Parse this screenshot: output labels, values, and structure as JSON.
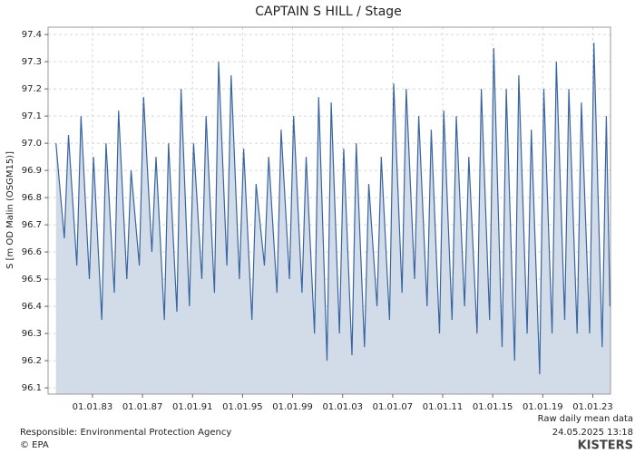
{
  "chart_data": {
    "type": "area",
    "title": "CAPTAIN S HILL / Stage",
    "y_label": "S [m OD Malin (OSGM15)]",
    "note": "Raw daily mean data",
    "responsible": "Responsible: Environmental Protection Agency",
    "timestamp": "24.05.2025 13:18",
    "copyright": "© EPA",
    "brand": "KISTERS",
    "line_color": "#3a64a0",
    "fill_color": "#d2dce9",
    "grid": true,
    "xlim": [
      "1979-06-15",
      "2024-06-01"
    ],
    "ylim": [
      96.077,
      97.427
    ],
    "xticks": [
      {
        "value": "1983-01-01",
        "label": "01.01.83"
      },
      {
        "value": "1987-01-01",
        "label": "01.01.87"
      },
      {
        "value": "1991-01-01",
        "label": "01.01.91"
      },
      {
        "value": "1995-01-01",
        "label": "01.01.95"
      },
      {
        "value": "1999-01-01",
        "label": "01.01.99"
      },
      {
        "value": "2003-01-01",
        "label": "01.01.03"
      },
      {
        "value": "2007-01-01",
        "label": "01.01.07"
      },
      {
        "value": "2011-01-01",
        "label": "01.01.11"
      },
      {
        "value": "2015-01-01",
        "label": "01.01.15"
      },
      {
        "value": "2019-01-01",
        "label": "01.01.19"
      },
      {
        "value": "2023-01-01",
        "label": "01.01.23"
      }
    ],
    "yticks": [
      96.1,
      96.2,
      96.3,
      96.4,
      96.5,
      96.6,
      96.7,
      96.8,
      96.9,
      {
        "value": 97,
        "label": "97.0"
      },
      97.1,
      97.2,
      97.3,
      97.4
    ],
    "x": [
      "1980-02-01",
      "1980-10-01",
      "1981-02-01",
      "1981-10-01",
      "1982-02-01",
      "1982-10-01",
      "1983-02-01",
      "1983-10-01",
      "1984-02-01",
      "1984-10-01",
      "1985-02-01",
      "1985-10-01",
      "1986-02-01",
      "1986-10-01",
      "1987-02-01",
      "1987-10-01",
      "1988-02-01",
      "1988-10-01",
      "1989-02-01",
      "1989-10-01",
      "1990-02-01",
      "1990-10-01",
      "1991-02-01",
      "1991-10-01",
      "1992-02-01",
      "1992-10-01",
      "1993-02-01",
      "1993-10-01",
      "1994-02-01",
      "1994-10-01",
      "1995-02-01",
      "1995-10-01",
      "1996-02-01",
      "1996-10-01",
      "1997-02-01",
      "1997-10-01",
      "1998-02-01",
      "1998-10-01",
      "1999-02-01",
      "1999-10-01",
      "2000-02-01",
      "2000-10-01",
      "2001-02-01",
      "2001-10-01",
      "2002-02-01",
      "2002-10-01",
      "2003-02-01",
      "2003-10-01",
      "2004-02-01",
      "2004-10-01",
      "2005-02-01",
      "2005-10-01",
      "2006-02-01",
      "2006-10-01",
      "2007-02-01",
      "2007-10-01",
      "2008-02-01",
      "2008-10-01",
      "2009-02-01",
      "2009-10-01",
      "2010-02-01",
      "2010-10-01",
      "2011-02-01",
      "2011-10-01",
      "2012-02-01",
      "2012-10-01",
      "2013-02-01",
      "2013-10-01",
      "2014-02-01",
      "2014-10-01",
      "2015-02-01",
      "2015-10-01",
      "2016-02-01",
      "2016-10-01",
      "2017-02-01",
      "2017-10-01",
      "2018-02-01",
      "2018-10-01",
      "2019-02-01",
      "2019-10-01",
      "2020-02-01",
      "2020-10-01",
      "2021-02-01",
      "2021-10-01",
      "2022-02-01",
      "2022-10-01",
      "2023-02-01",
      "2023-10-01",
      "2024-02-01",
      "2024-05-15"
    ],
    "values": [
      97.0,
      96.65,
      97.03,
      96.55,
      97.1,
      96.5,
      96.95,
      96.35,
      97.0,
      96.45,
      97.12,
      96.5,
      96.9,
      96.55,
      97.17,
      96.6,
      96.95,
      96.35,
      97.0,
      96.38,
      97.2,
      96.4,
      97.0,
      96.5,
      97.1,
      96.45,
      97.3,
      96.55,
      97.25,
      96.5,
      96.98,
      96.35,
      96.85,
      96.55,
      96.95,
      96.45,
      97.05,
      96.5,
      97.1,
      96.45,
      96.95,
      96.3,
      97.17,
      96.2,
      97.15,
      96.3,
      96.98,
      96.22,
      97.0,
      96.25,
      96.85,
      96.4,
      96.95,
      96.35,
      97.22,
      96.45,
      97.2,
      96.5,
      97.1,
      96.4,
      97.05,
      96.3,
      97.12,
      96.35,
      97.1,
      96.4,
      96.95,
      96.3,
      97.2,
      96.35,
      97.35,
      96.25,
      97.2,
      96.2,
      97.25,
      96.3,
      97.05,
      96.15,
      97.2,
      96.3,
      97.3,
      96.35,
      97.2,
      96.3,
      97.15,
      96.3,
      97.37,
      96.25,
      97.1,
      96.4
    ]
  }
}
